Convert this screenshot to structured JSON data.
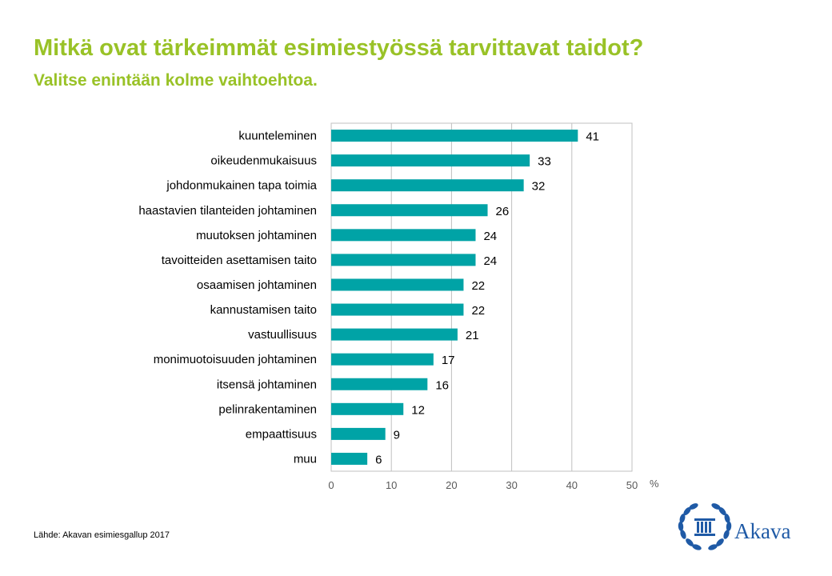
{
  "title": "Mitkä ovat tärkeimmät esimiestyössä tarvittavat taidot?",
  "subtitle": "Valitse enintään kolme vaihtoehtoa.",
  "source": "Lähde: Akavan esimiesgallup 2017",
  "logo_text": "Akava",
  "colors": {
    "accent": "#99c227",
    "bar": "#00a3a6",
    "grid": "#c0c0c0",
    "logo": "#1f5aa6"
  },
  "chart_data": {
    "type": "bar",
    "orientation": "horizontal",
    "categories": [
      "kuunteleminen",
      "oikeudenmukaisuus",
      "johdonmukainen tapa toimia",
      "haastavien tilanteiden johtaminen",
      "muutoksen johtaminen",
      "tavoitteiden asettamisen taito",
      "osaamisen johtaminen",
      "kannustamisen taito",
      "vastuullisuus",
      "monimuotoisuuden johtaminen",
      "itsensä johtaminen",
      "pelinrakentaminen",
      "empaattisuus",
      "muu"
    ],
    "values": [
      41,
      33,
      32,
      26,
      24,
      24,
      22,
      22,
      21,
      17,
      16,
      12,
      9,
      6
    ],
    "data_labels": [
      "41",
      "33",
      "32",
      "26",
      "24",
      "24",
      "22",
      "22",
      "21",
      "17",
      "16",
      "12",
      "9",
      "6"
    ],
    "xlim": [
      0,
      50
    ],
    "xticks": [
      "0",
      "10",
      "20",
      "30",
      "40",
      "50"
    ],
    "xunit": "%",
    "grid": true
  }
}
